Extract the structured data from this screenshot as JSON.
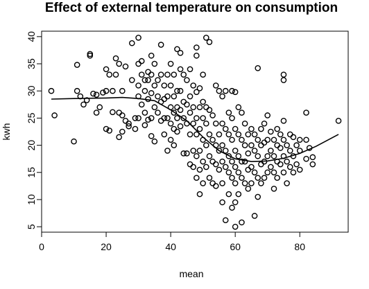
{
  "chart_data": {
    "type": "scatter",
    "title": "Effect of external temperature on consumption",
    "xlabel": "mean",
    "ylabel": "kwh",
    "xlim": [
      0,
      95
    ],
    "ylim": [
      4,
      41
    ],
    "x_ticks": [
      0,
      20,
      40,
      60,
      80
    ],
    "y_ticks": [
      5,
      10,
      15,
      20,
      25,
      30,
      35,
      40
    ],
    "grid": false,
    "legend": "none",
    "colors": {
      "points": "#000000",
      "line": "#000000"
    },
    "series": [
      {
        "kind": "points",
        "marker": "open-circle",
        "points": [
          [
            3,
            30
          ],
          [
            4,
            25.5
          ],
          [
            10,
            20.7
          ],
          [
            11,
            34.8
          ],
          [
            11,
            30
          ],
          [
            12,
            29
          ],
          [
            13,
            27.5
          ],
          [
            14,
            28.3
          ],
          [
            15,
            36.8
          ],
          [
            15,
            36.5
          ],
          [
            16,
            29.5
          ],
          [
            17,
            29.3
          ],
          [
            17,
            26
          ],
          [
            18,
            27
          ],
          [
            19,
            29.7
          ],
          [
            20,
            34
          ],
          [
            20,
            30
          ],
          [
            20,
            23
          ],
          [
            21,
            33
          ],
          [
            21,
            22.7
          ],
          [
            22,
            30
          ],
          [
            22,
            26.1
          ],
          [
            23,
            36
          ],
          [
            23,
            33
          ],
          [
            24,
            35
          ],
          [
            24,
            26
          ],
          [
            24,
            21.5
          ],
          [
            25,
            30
          ],
          [
            25,
            25.5
          ],
          [
            25,
            22.5
          ],
          [
            26,
            34.5
          ],
          [
            26,
            24.5
          ],
          [
            27,
            24
          ],
          [
            27,
            23.5
          ],
          [
            28,
            38.8
          ],
          [
            28,
            32
          ],
          [
            29,
            25
          ],
          [
            29,
            23
          ],
          [
            30,
            39.8
          ],
          [
            30,
            35
          ],
          [
            30,
            31
          ],
          [
            30,
            29
          ],
          [
            30,
            25
          ],
          [
            31,
            35.5
          ],
          [
            31,
            33
          ],
          [
            31,
            27.5
          ],
          [
            32,
            32
          ],
          [
            32,
            30
          ],
          [
            32,
            26
          ],
          [
            32,
            23.7
          ],
          [
            33,
            33.5
          ],
          [
            33,
            32
          ],
          [
            33,
            28.5
          ],
          [
            33,
            24.7
          ],
          [
            34,
            36.5
          ],
          [
            34,
            33
          ],
          [
            34,
            29.6
          ],
          [
            34,
            25
          ],
          [
            34,
            21.7
          ],
          [
            35,
            35
          ],
          [
            35,
            31
          ],
          [
            35,
            27
          ],
          [
            35,
            20.7
          ],
          [
            36,
            32
          ],
          [
            36,
            29
          ],
          [
            36,
            26
          ],
          [
            37,
            38.5
          ],
          [
            37,
            33
          ],
          [
            37,
            28
          ],
          [
            37,
            24.5
          ],
          [
            38,
            31
          ],
          [
            38,
            28.5
          ],
          [
            38,
            25
          ],
          [
            38,
            22
          ],
          [
            39,
            33
          ],
          [
            39,
            29
          ],
          [
            39,
            25
          ],
          [
            39,
            19
          ],
          [
            40,
            35
          ],
          [
            40,
            31
          ],
          [
            40,
            27
          ],
          [
            40,
            24
          ],
          [
            40,
            21
          ],
          [
            41,
            33
          ],
          [
            41,
            29
          ],
          [
            41,
            26
          ],
          [
            41,
            23
          ],
          [
            41,
            20
          ],
          [
            42,
            37.7
          ],
          [
            42,
            30
          ],
          [
            42,
            27
          ],
          [
            42,
            25
          ],
          [
            42,
            22.5
          ],
          [
            43,
            37
          ],
          [
            43,
            34
          ],
          [
            43,
            30
          ],
          [
            43,
            26.5
          ],
          [
            43,
            23.5
          ],
          [
            44,
            33
          ],
          [
            44,
            28
          ],
          [
            44,
            25
          ],
          [
            44,
            18.5
          ],
          [
            45,
            32
          ],
          [
            45,
            27.5
          ],
          [
            45,
            24
          ],
          [
            45,
            18.5
          ],
          [
            46,
            34
          ],
          [
            46,
            29
          ],
          [
            46,
            26
          ],
          [
            46,
            22
          ],
          [
            46,
            16.5
          ],
          [
            47,
            31
          ],
          [
            47,
            27
          ],
          [
            47,
            24
          ],
          [
            47,
            19
          ],
          [
            47,
            16
          ],
          [
            48,
            38
          ],
          [
            48,
            36.5
          ],
          [
            48,
            29.8
          ],
          [
            48,
            25
          ],
          [
            48,
            22
          ],
          [
            48,
            18
          ],
          [
            48,
            14
          ],
          [
            49,
            30.5
          ],
          [
            49,
            27
          ],
          [
            49,
            23
          ],
          [
            49,
            19
          ],
          [
            49,
            15.5
          ],
          [
            49,
            11
          ],
          [
            50,
            33
          ],
          [
            50,
            28
          ],
          [
            50,
            25
          ],
          [
            50,
            21
          ],
          [
            50,
            17
          ],
          [
            50,
            13
          ],
          [
            51,
            39.8
          ],
          [
            51,
            27
          ],
          [
            51,
            24
          ],
          [
            51,
            20
          ],
          [
            51,
            16
          ],
          [
            52,
            39
          ],
          [
            52,
            26.5
          ],
          [
            52,
            22
          ],
          [
            52,
            18
          ],
          [
            52,
            14
          ],
          [
            53,
            25.5
          ],
          [
            53,
            21
          ],
          [
            53,
            17
          ],
          [
            53,
            13
          ],
          [
            54,
            31
          ],
          [
            54,
            24
          ],
          [
            54,
            20
          ],
          [
            54,
            16.5
          ],
          [
            54,
            12.5
          ],
          [
            55,
            30
          ],
          [
            55,
            22
          ],
          [
            55,
            19
          ],
          [
            55,
            15.5
          ],
          [
            56,
            29
          ],
          [
            56,
            24
          ],
          [
            56,
            20
          ],
          [
            56,
            17
          ],
          [
            56,
            13
          ],
          [
            56,
            9.5
          ],
          [
            57,
            30
          ],
          [
            57,
            23
          ],
          [
            57,
            19
          ],
          [
            57,
            16
          ],
          [
            57,
            6.2
          ],
          [
            58,
            26
          ],
          [
            58,
            22
          ],
          [
            58,
            18
          ],
          [
            58,
            15
          ],
          [
            58,
            11
          ],
          [
            59,
            30
          ],
          [
            59,
            25
          ],
          [
            59,
            21
          ],
          [
            59,
            17
          ],
          [
            59,
            14
          ],
          [
            59,
            8.5
          ],
          [
            60,
            29.8
          ],
          [
            60,
            23
          ],
          [
            60,
            19
          ],
          [
            60,
            16
          ],
          [
            60,
            13
          ],
          [
            60,
            9.5
          ],
          [
            60,
            5
          ],
          [
            61,
            27
          ],
          [
            61,
            22
          ],
          [
            61,
            18
          ],
          [
            61,
            15
          ],
          [
            61,
            11
          ],
          [
            62,
            26
          ],
          [
            62,
            21
          ],
          [
            62,
            17
          ],
          [
            62,
            14
          ],
          [
            62,
            5.8
          ],
          [
            63,
            24
          ],
          [
            63,
            20
          ],
          [
            63,
            17
          ],
          [
            63,
            13
          ],
          [
            64,
            22
          ],
          [
            64,
            18.5
          ],
          [
            64,
            15.5
          ],
          [
            64,
            12
          ],
          [
            65,
            23
          ],
          [
            65,
            20
          ],
          [
            65,
            16
          ],
          [
            65,
            13
          ],
          [
            66,
            22
          ],
          [
            66,
            19
          ],
          [
            66,
            15
          ],
          [
            66,
            7
          ],
          [
            67,
            34.2
          ],
          [
            67,
            21
          ],
          [
            67,
            18
          ],
          [
            67,
            14
          ],
          [
            67,
            10.5
          ],
          [
            68,
            23
          ],
          [
            68,
            20
          ],
          [
            68,
            16.5
          ],
          [
            68,
            13
          ],
          [
            69,
            24
          ],
          [
            69,
            20.5
          ],
          [
            69,
            17
          ],
          [
            69,
            14
          ],
          [
            70,
            25.5
          ],
          [
            70,
            21
          ],
          [
            70,
            18
          ],
          [
            70,
            15
          ],
          [
            71,
            22.5
          ],
          [
            71,
            19
          ],
          [
            71,
            16
          ],
          [
            72,
            21
          ],
          [
            72,
            18
          ],
          [
            72,
            15
          ],
          [
            72,
            12
          ],
          [
            73,
            23
          ],
          [
            73,
            20
          ],
          [
            73,
            17
          ],
          [
            73,
            14
          ],
          [
            74,
            22
          ],
          [
            74,
            19.5
          ],
          [
            74,
            16.5
          ],
          [
            75,
            33
          ],
          [
            75,
            32
          ],
          [
            75,
            24.5
          ],
          [
            75,
            21
          ],
          [
            75,
            18
          ],
          [
            75,
            15
          ],
          [
            76,
            20
          ],
          [
            76,
            17
          ],
          [
            76,
            13
          ],
          [
            77,
            22
          ],
          [
            77,
            19
          ],
          [
            77,
            16
          ],
          [
            78,
            21.5
          ],
          [
            78,
            18
          ],
          [
            78,
            15
          ],
          [
            79,
            20
          ],
          [
            79,
            16.5
          ],
          [
            80,
            21
          ],
          [
            80,
            19
          ],
          [
            80,
            15.5
          ],
          [
            82,
            26
          ],
          [
            82,
            21
          ],
          [
            82,
            17.5
          ],
          [
            83,
            19.5
          ],
          [
            84,
            17.8
          ],
          [
            84,
            16.5
          ],
          [
            92,
            24.5
          ]
        ]
      },
      {
        "kind": "line",
        "points": [
          [
            3,
            28.5
          ],
          [
            10,
            28.6
          ],
          [
            20,
            28.7
          ],
          [
            25,
            28.8
          ],
          [
            30,
            28.6
          ],
          [
            35,
            28.2
          ],
          [
            40,
            26.5
          ],
          [
            45,
            24.5
          ],
          [
            50,
            21.5
          ],
          [
            55,
            19
          ],
          [
            60,
            17.5
          ],
          [
            65,
            17
          ],
          [
            70,
            17.1
          ],
          [
            75,
            17.6
          ],
          [
            80,
            18.5
          ],
          [
            85,
            19.8
          ],
          [
            92,
            22
          ]
        ]
      }
    ]
  }
}
